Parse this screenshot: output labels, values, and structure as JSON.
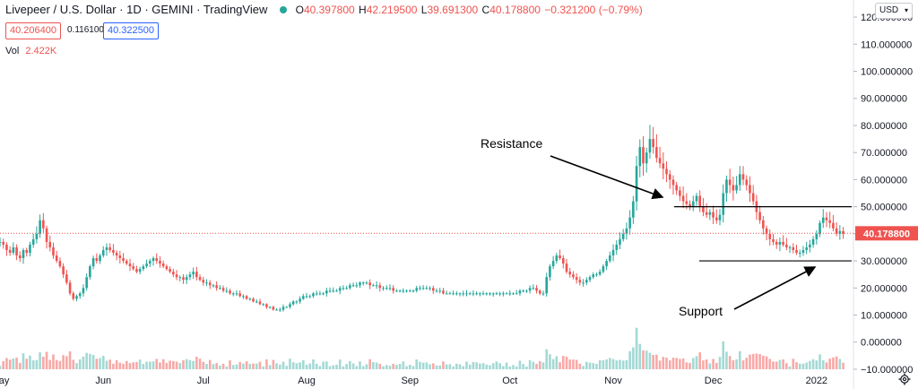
{
  "header": {
    "symbol": "Livepeer / U.S. Dollar · 1D · GEMINI · TradingView",
    "ohlc": [
      {
        "k": "O",
        "v": "40.397800"
      },
      {
        "k": "H",
        "v": "42.219500"
      },
      {
        "k": "L",
        "v": "39.691300"
      },
      {
        "k": "C",
        "v": "40.178800"
      },
      {
        "k": "",
        "v": "−0.321200 (−0.79%)"
      }
    ],
    "bid": "40.206400",
    "spread": "0.116100",
    "ask": "40.322500",
    "vol_label": "Vol",
    "vol_value": "2.422K",
    "currency": "USD"
  },
  "colors": {
    "up": "#26a69a",
    "down": "#ef5350",
    "vol_up": "#a3d9d4",
    "vol_down": "#f7a9a7",
    "axis_text": "#131722"
  },
  "icons": {
    "currency_dropdown": "chevron-down-icon",
    "settings": "gear-icon"
  },
  "chart_data": {
    "type": "candlestick",
    "title": "Livepeer / U.S. Dollar · 1D · GEMINI · TradingView",
    "yticks": [
      "120.000000",
      "110.000000",
      "100.000000",
      "90.000000",
      "80.000000",
      "70.000000",
      "60.000000",
      "50.000000",
      "40.000000",
      "30.000000",
      "20.000000",
      "10.000000",
      "0.000000",
      "−10.000000"
    ],
    "ytick_values": [
      120,
      110,
      100,
      90,
      80,
      70,
      60,
      50,
      40,
      30,
      20,
      10,
      0,
      -10
    ],
    "ylim": [
      -12,
      123
    ],
    "xticks": [
      {
        "label": "May",
        "date": "2021-05-01"
      },
      {
        "label": "Jun",
        "date": "2021-06-01"
      },
      {
        "label": "Jul",
        "date": "2021-07-01"
      },
      {
        "label": "Aug",
        "date": "2021-08-01"
      },
      {
        "label": "Sep",
        "date": "2021-09-01"
      },
      {
        "label": "Oct",
        "date": "2021-10-01"
      },
      {
        "label": "Nov",
        "date": "2021-11-01"
      },
      {
        "label": "Dec",
        "date": "2021-12-01"
      },
      {
        "label": "2022",
        "date": "2022-01-01"
      }
    ],
    "xlim": [
      "2021-05-01",
      "2022-01-11"
    ],
    "last_price": 40.1788,
    "last_price_label": "40.178800",
    "annotations": {
      "resistance": {
        "text": "Resistance",
        "level": 50
      },
      "support": {
        "text": "Support",
        "level": 30
      }
    },
    "close_series": {
      "start": "2021-05-01",
      "values": [
        37,
        36,
        34,
        33,
        35,
        32,
        31,
        34,
        33,
        36,
        38,
        40,
        45,
        42,
        37,
        35,
        32,
        30,
        28,
        25,
        22,
        18,
        16,
        17,
        18,
        20,
        24,
        28,
        31,
        30,
        32,
        34,
        35,
        34,
        33,
        32,
        31,
        30,
        29,
        28,
        27,
        26,
        27,
        28,
        29,
        30,
        31,
        30,
        29,
        28,
        27,
        26,
        25,
        24,
        24,
        23,
        24,
        25,
        26,
        24,
        23,
        22,
        22,
        21,
        21,
        20,
        20,
        19,
        19,
        18,
        18,
        18,
        17,
        17,
        16,
        16,
        15,
        15,
        14,
        14,
        13,
        13,
        12,
        12,
        12,
        13,
        13,
        14,
        15,
        15,
        16,
        17,
        17,
        17,
        18,
        18,
        18,
        18,
        19,
        19,
        19,
        19,
        20,
        20,
        20,
        21,
        21,
        21,
        22,
        22,
        22,
        21,
        21,
        21,
        20,
        20,
        20,
        20,
        19,
        19,
        19,
        19,
        19,
        19,
        19,
        20,
        20,
        20,
        20,
        20,
        19,
        19,
        19,
        18,
        18,
        18,
        18,
        18,
        18,
        18,
        18,
        18,
        18,
        18,
        18,
        18,
        18,
        18,
        18,
        18,
        18,
        18,
        18,
        18,
        18,
        18,
        19,
        19,
        19,
        20,
        20,
        19,
        18,
        18,
        24,
        28,
        30,
        32,
        31,
        29,
        26,
        25,
        24,
        23,
        22,
        22,
        23,
        24,
        25,
        25,
        26,
        28,
        30,
        32,
        34,
        36,
        38,
        40,
        42,
        46,
        52,
        65,
        72,
        66,
        70,
        75,
        72,
        68,
        66,
        64,
        62,
        60,
        58,
        56,
        54,
        52,
        51,
        50,
        52,
        54,
        50,
        48,
        47,
        48,
        46,
        45,
        47,
        55,
        60,
        58,
        56,
        58,
        62,
        60,
        58,
        55,
        52,
        48,
        45,
        42,
        40,
        38,
        37,
        36,
        37,
        36,
        35,
        35,
        34,
        33,
        33,
        34,
        35,
        36,
        38,
        40,
        44,
        46,
        45,
        44,
        42,
        40,
        41,
        40
      ]
    }
  }
}
